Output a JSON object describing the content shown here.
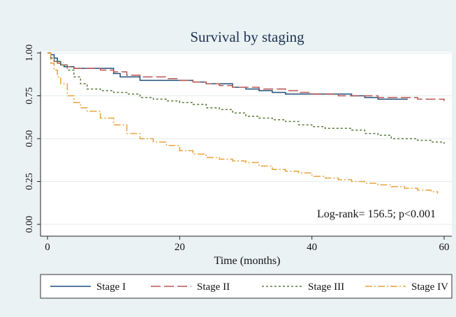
{
  "chart_data": {
    "type": "line",
    "title": "Survival by staging",
    "xlabel": "Time (months)",
    "ylabel": "",
    "xlim": [
      0,
      60
    ],
    "ylim": [
      0,
      1
    ],
    "xticks": [
      0,
      20,
      40,
      60
    ],
    "yticks": [
      0.0,
      0.25,
      0.5,
      0.75,
      1.0
    ],
    "ytick_labels": [
      "0.00",
      "0.25",
      "0.50",
      "0.75",
      "1.00"
    ],
    "grid": true,
    "legend_position": "bottom",
    "annotation": "Log-rank= 156.5; p<0.001",
    "series": [
      {
        "name": "Stage I",
        "color": "#1f4e79",
        "dash": "solid",
        "x": [
          0,
          0.5,
          1,
          1.5,
          2,
          2.5,
          3,
          4,
          6,
          8,
          10,
          11,
          12,
          14,
          16,
          18,
          20,
          22,
          24,
          26,
          28,
          30,
          32,
          34,
          36,
          38,
          40,
          42,
          44,
          46,
          48,
          50,
          52,
          54.5
        ],
        "y": [
          1.0,
          0.99,
          0.97,
          0.95,
          0.93,
          0.92,
          0.92,
          0.91,
          0.91,
          0.91,
          0.88,
          0.86,
          0.86,
          0.84,
          0.84,
          0.84,
          0.84,
          0.83,
          0.82,
          0.82,
          0.8,
          0.79,
          0.78,
          0.77,
          0.76,
          0.76,
          0.76,
          0.76,
          0.76,
          0.75,
          0.74,
          0.73,
          0.73,
          0.73
        ]
      },
      {
        "name": "Stage II",
        "color": "#b85450",
        "dash": "long",
        "x": [
          0,
          0.5,
          1,
          1.5,
          2,
          3,
          4,
          6,
          8,
          10,
          12,
          14,
          16,
          18,
          20,
          22,
          24,
          26,
          28,
          30,
          32,
          34,
          36,
          38,
          40,
          42,
          44,
          46,
          48,
          50,
          52,
          54,
          56,
          58,
          60
        ],
        "y": [
          1.0,
          0.97,
          0.95,
          0.94,
          0.93,
          0.92,
          0.91,
          0.91,
          0.9,
          0.89,
          0.87,
          0.86,
          0.86,
          0.85,
          0.84,
          0.83,
          0.82,
          0.81,
          0.8,
          0.8,
          0.79,
          0.79,
          0.78,
          0.77,
          0.76,
          0.76,
          0.75,
          0.75,
          0.75,
          0.74,
          0.74,
          0.74,
          0.73,
          0.73,
          0.72
        ]
      },
      {
        "name": "Stage III",
        "color": "#5a7a3a",
        "dash": "short",
        "x": [
          0,
          0.5,
          1,
          2,
          3,
          4,
          5,
          6,
          8,
          10,
          12,
          14,
          16,
          18,
          20,
          22,
          24,
          26,
          28,
          30,
          32,
          34,
          36,
          38,
          40,
          42,
          44,
          46,
          48,
          50,
          52,
          54,
          56,
          58,
          60
        ],
        "y": [
          1.0,
          0.97,
          0.95,
          0.93,
          0.9,
          0.86,
          0.82,
          0.79,
          0.78,
          0.77,
          0.76,
          0.74,
          0.73,
          0.72,
          0.71,
          0.7,
          0.68,
          0.67,
          0.65,
          0.63,
          0.62,
          0.61,
          0.6,
          0.58,
          0.57,
          0.56,
          0.56,
          0.55,
          0.53,
          0.52,
          0.5,
          0.5,
          0.49,
          0.48,
          0.47
        ]
      },
      {
        "name": "Stage IV",
        "color": "#e8a23c",
        "dash": "dashdot",
        "x": [
          0,
          0.5,
          1,
          1.5,
          2,
          3,
          4,
          5,
          6,
          8,
          10,
          12,
          14,
          16,
          18,
          20,
          22,
          24,
          26,
          28,
          30,
          32,
          34,
          36,
          38,
          40,
          42,
          44,
          46,
          48,
          50,
          52,
          54,
          56,
          58,
          59
        ],
        "y": [
          1.0,
          0.94,
          0.9,
          0.86,
          0.82,
          0.75,
          0.71,
          0.68,
          0.66,
          0.62,
          0.58,
          0.53,
          0.5,
          0.48,
          0.46,
          0.43,
          0.41,
          0.39,
          0.38,
          0.37,
          0.36,
          0.34,
          0.32,
          0.31,
          0.3,
          0.28,
          0.27,
          0.26,
          0.25,
          0.24,
          0.23,
          0.22,
          0.21,
          0.2,
          0.19,
          0.18
        ]
      }
    ]
  }
}
